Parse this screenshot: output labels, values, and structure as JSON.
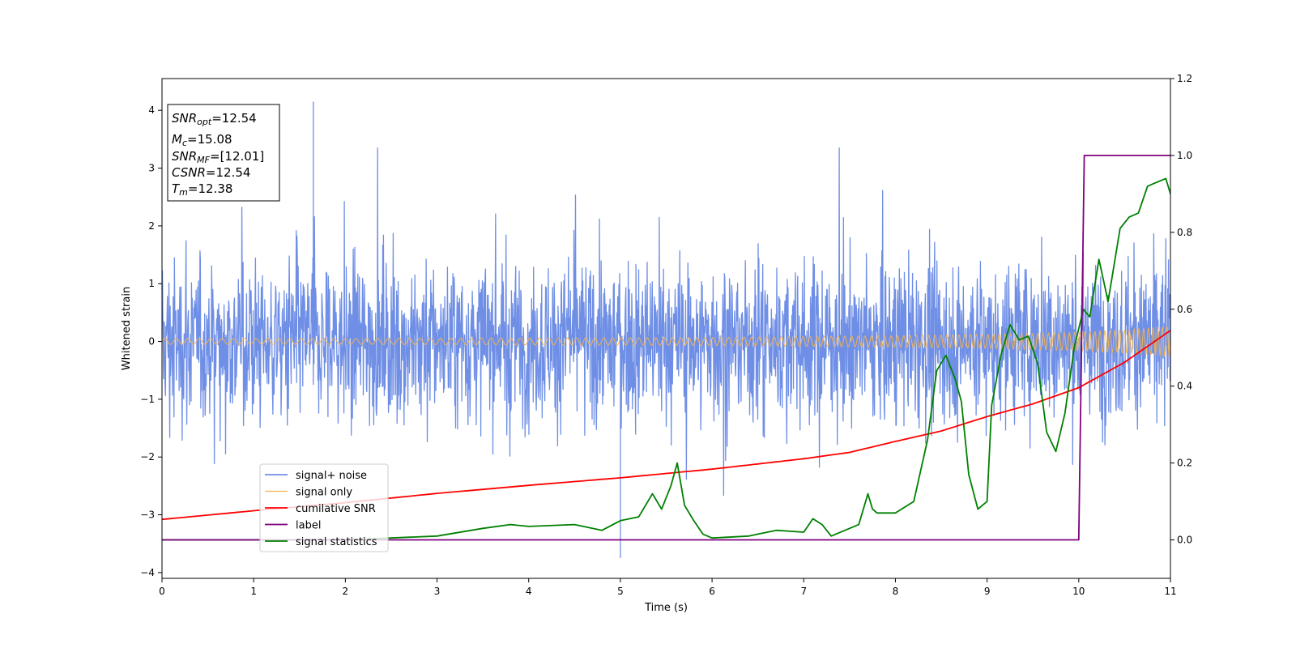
{
  "chart_data": {
    "type": "line",
    "title": "",
    "xlabel": "Time (s)",
    "ylabel": "Whitened strain",
    "xlim": [
      0,
      11
    ],
    "ylim_left": [
      -4.1,
      4.55
    ],
    "ylim_right": [
      -0.1,
      1.2
    ],
    "x_ticks": [
      "0",
      "1",
      "2",
      "3",
      "4",
      "5",
      "6",
      "7",
      "8",
      "9",
      "10",
      "11"
    ],
    "y_ticks_left": [
      "−4",
      "−3",
      "−2",
      "−1",
      "0",
      "1",
      "2",
      "3",
      "4"
    ],
    "y_ticks_right": [
      "0.0",
      "0.2",
      "0.4",
      "0.6",
      "0.8",
      "1.0",
      "1.2"
    ],
    "grid": false,
    "legend_position": "lower-left",
    "annotation": {
      "lines": [
        {
          "name": "SNR",
          "sub": "opt",
          "value": "=12.54"
        },
        {
          "name": "M",
          "sub": "c",
          "value": "=15.08"
        },
        {
          "name": "SNR",
          "sub": "MF",
          "value": "=[12.01]"
        },
        {
          "name": "CSNR",
          "sub": "",
          "value": "=12.54"
        },
        {
          "name": "T",
          "sub": "m",
          "value": "=12.38"
        }
      ]
    },
    "series": [
      {
        "name": "signal+ noise",
        "axis": "left",
        "color": "#6f8fe6",
        "description_values": {
          "typical_range": [
            -2.3,
            2.3
          ],
          "max": 4.15,
          "min": -3.75,
          "max_at_x": 1.65,
          "min_at_x": 5.0
        }
      },
      {
        "name": "signal only",
        "axis": "left",
        "color": "#f4b350",
        "amplitude_points": {
          "x": [
            0,
            2,
            4,
            6,
            8,
            9,
            10,
            10.5,
            11
          ],
          "amp": [
            0.05,
            0.05,
            0.06,
            0.07,
            0.1,
            0.12,
            0.16,
            0.2,
            0.26
          ]
        }
      },
      {
        "name": "cumilative SNR",
        "axis": "left",
        "color": "#ff0000",
        "x": [
          0,
          1,
          2,
          3,
          4,
          5,
          6,
          7,
          7.5,
          8,
          8.5,
          9,
          9.5,
          10,
          10.5,
          11
        ],
        "values": [
          -3.08,
          -2.93,
          -2.79,
          -2.63,
          -2.49,
          -2.36,
          -2.21,
          -2.03,
          -1.92,
          -1.73,
          -1.55,
          -1.3,
          -1.08,
          -0.8,
          -0.36,
          0.19
        ]
      },
      {
        "name": "label",
        "axis": "right",
        "color": "#800080",
        "x": [
          0,
          10,
          10.06,
          11
        ],
        "values": [
          0,
          0,
          1,
          1
        ]
      },
      {
        "name": "signal statistics",
        "axis": "right",
        "color": "#008000",
        "x": [
          0,
          2,
          3,
          3.5,
          3.8,
          4,
          4.5,
          4.8,
          5,
          5.2,
          5.35,
          5.45,
          5.55,
          5.62,
          5.7,
          5.8,
          5.9,
          6.0,
          6.4,
          6.7,
          7.0,
          7.1,
          7.2,
          7.3,
          7.6,
          7.7,
          7.75,
          7.8,
          8.0,
          8.2,
          8.35,
          8.45,
          8.55,
          8.65,
          8.72,
          8.8,
          8.9,
          9.0,
          9.05,
          9.15,
          9.25,
          9.35,
          9.45,
          9.55,
          9.65,
          9.75,
          9.85,
          9.95,
          10.05,
          10.12,
          10.22,
          10.32,
          10.45,
          10.55,
          10.65,
          10.75,
          10.85,
          10.95,
          11.0
        ],
        "values": [
          0.0,
          0.0,
          0.01,
          0.03,
          0.04,
          0.035,
          0.04,
          0.025,
          0.05,
          0.06,
          0.12,
          0.08,
          0.14,
          0.2,
          0.09,
          0.05,
          0.015,
          0.005,
          0.01,
          0.025,
          0.02,
          0.055,
          0.04,
          0.01,
          0.04,
          0.12,
          0.08,
          0.07,
          0.07,
          0.1,
          0.26,
          0.44,
          0.48,
          0.42,
          0.36,
          0.17,
          0.08,
          0.1,
          0.35,
          0.48,
          0.56,
          0.52,
          0.53,
          0.46,
          0.28,
          0.23,
          0.33,
          0.5,
          0.6,
          0.58,
          0.73,
          0.62,
          0.81,
          0.84,
          0.85,
          0.92,
          0.93,
          0.94,
          0.9
        ]
      }
    ]
  }
}
